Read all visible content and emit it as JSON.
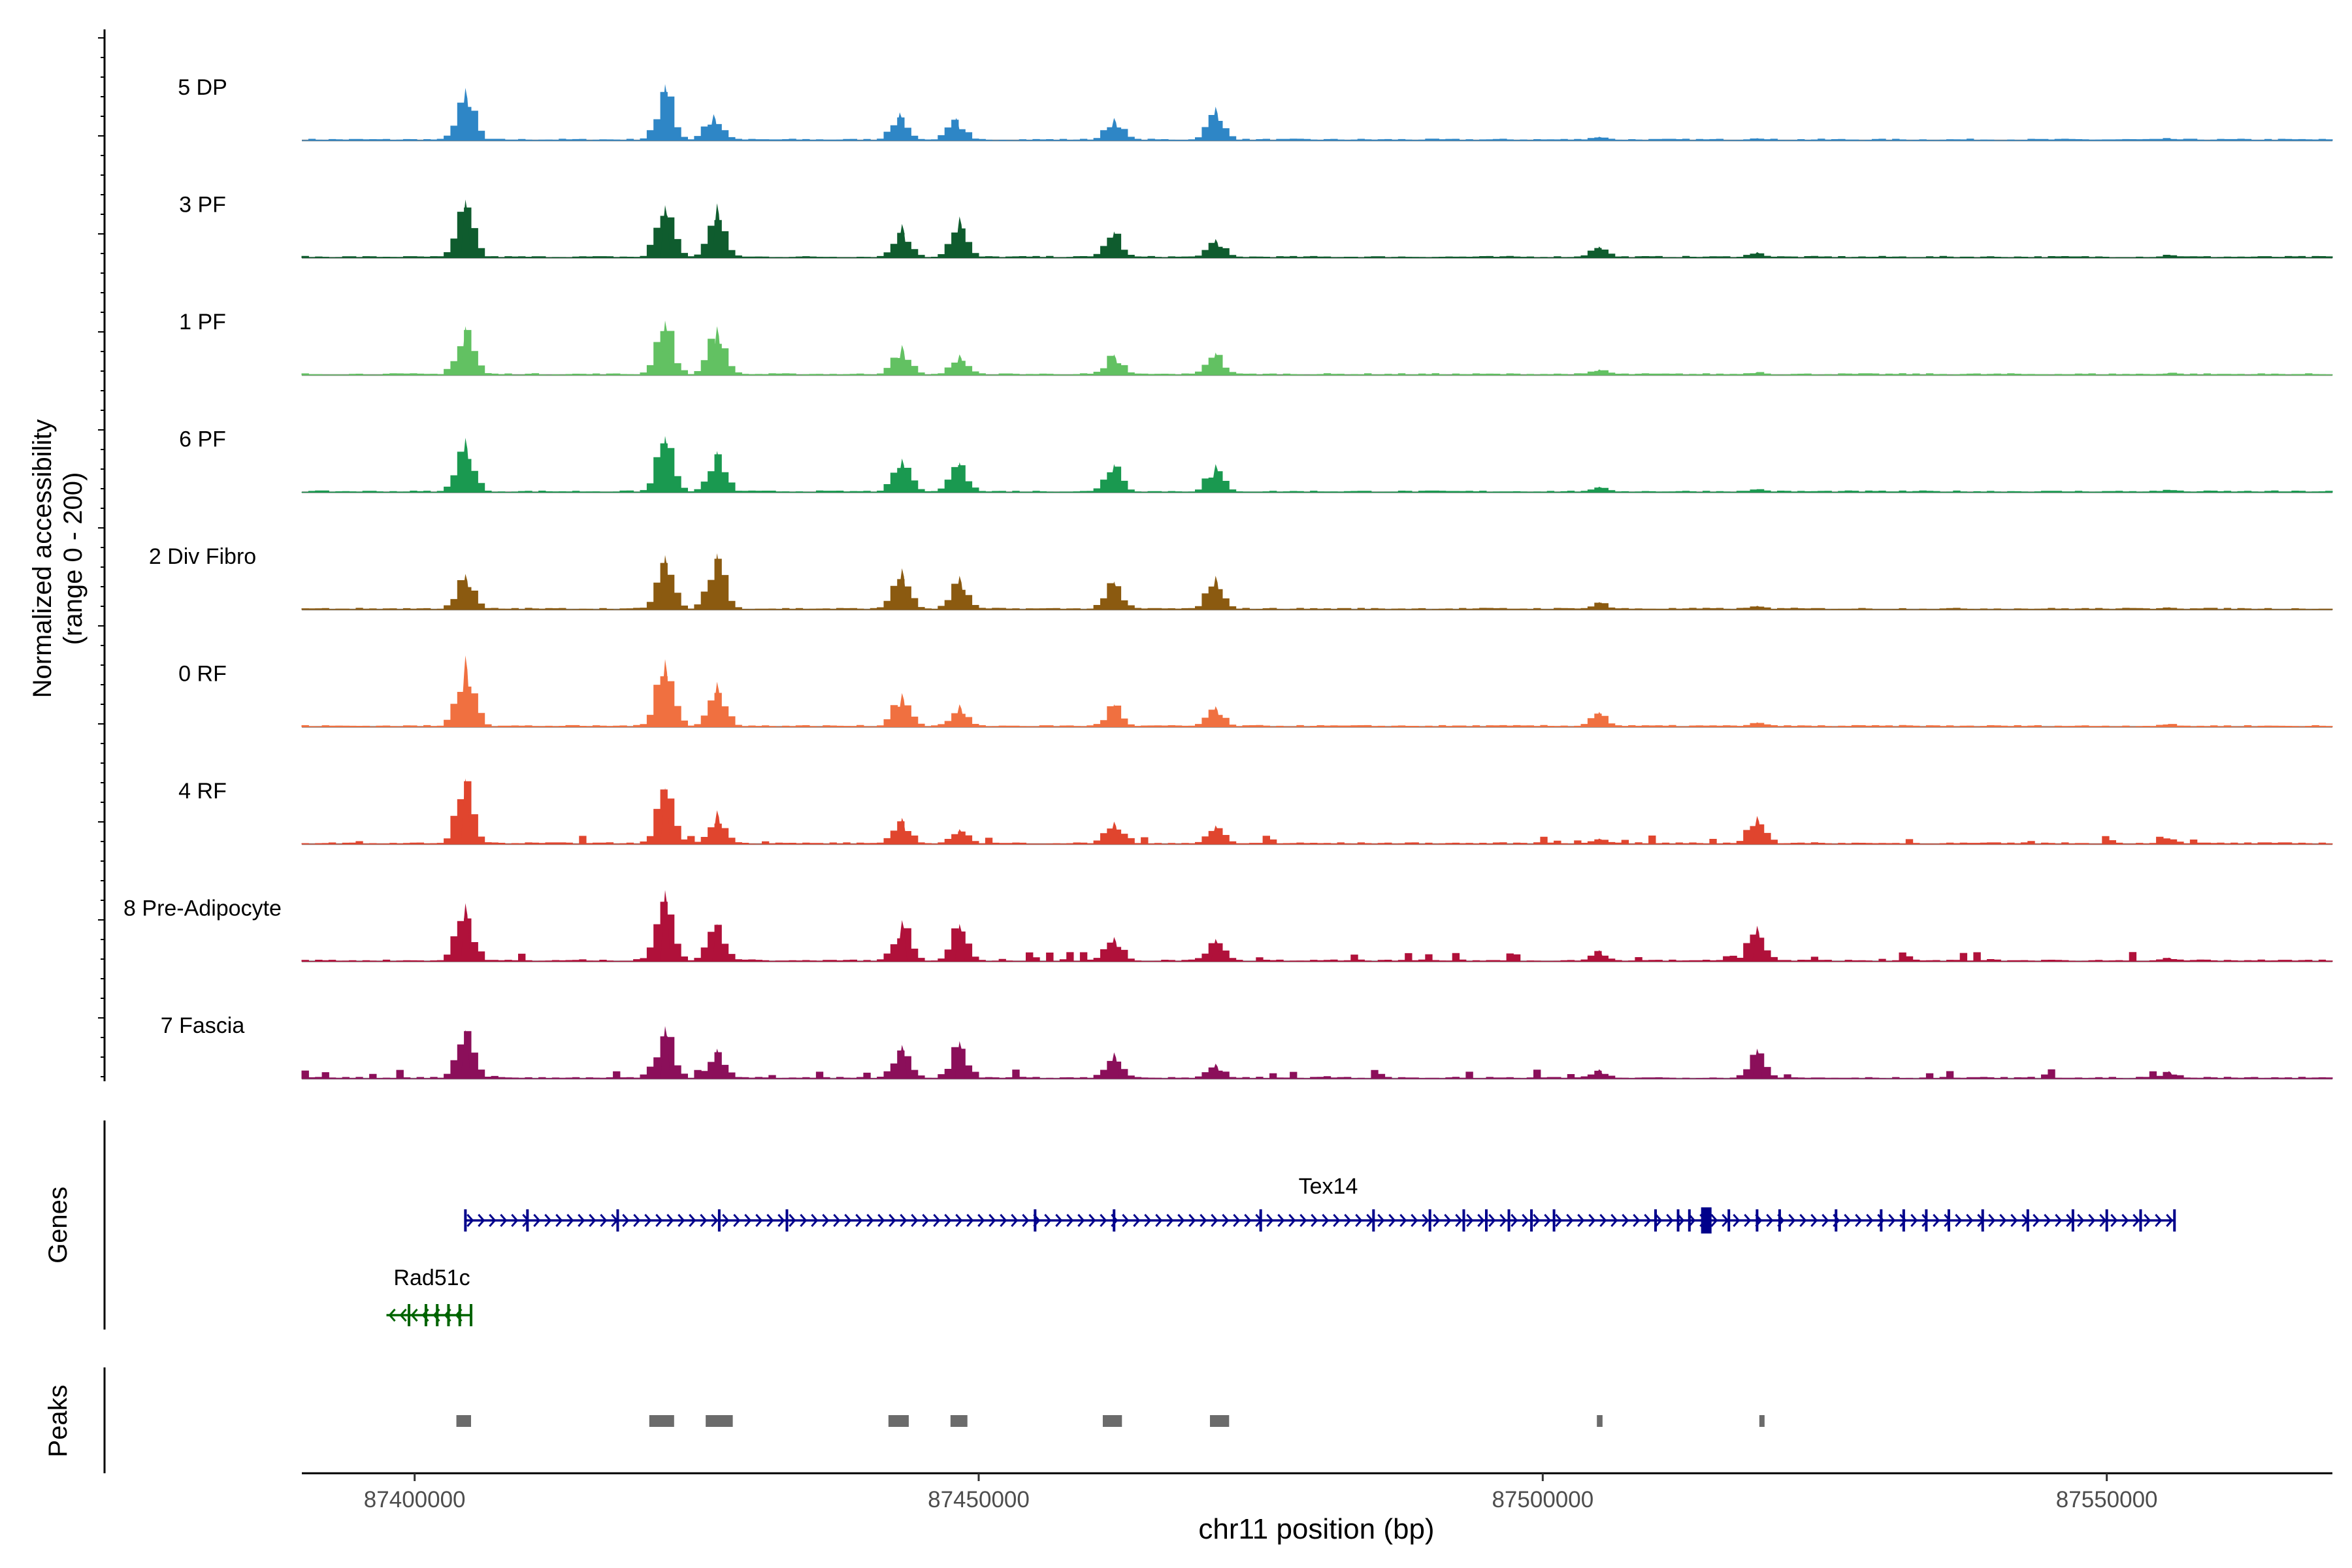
{
  "chart_data": {
    "type": "area",
    "ylabel_line1": "Normalized accessibility",
    "ylabel_line2": "(range 0 - 200)",
    "xlabel": "chr11 position (bp)",
    "genes_label": "Genes",
    "peaks_label": "Peaks",
    "xlim": [
      87390000,
      87570000
    ],
    "x_ticks": [
      87400000,
      87450000,
      87500000,
      87550000
    ],
    "x_tick_labels": [
      "87400000",
      "87450000",
      "87500000",
      "87550000"
    ],
    "ylim": [
      0,
      200
    ],
    "tracks": [
      {
        "name": "5 DP",
        "color": "#2e86c6",
        "peaks": [
          [
            87404500,
            140
          ],
          [
            87422200,
            150
          ],
          [
            87426500,
            70
          ],
          [
            87443000,
            75
          ],
          [
            87448000,
            60
          ],
          [
            87462000,
            60
          ],
          [
            87471000,
            90
          ],
          [
            87505000,
            10
          ],
          [
            87519000,
            6
          ],
          [
            87555500,
            6
          ]
        ]
      },
      {
        "name": "3 PF",
        "color": "#0f5c2e",
        "peaks": [
          [
            87404500,
            155
          ],
          [
            87422200,
            140
          ],
          [
            87426800,
            145
          ],
          [
            87443200,
            90
          ],
          [
            87448300,
            110
          ],
          [
            87462000,
            70
          ],
          [
            87471000,
            50
          ],
          [
            87505000,
            30
          ],
          [
            87519000,
            15
          ],
          [
            87555500,
            8
          ]
        ]
      },
      {
        "name": "1 PF",
        "color": "#62c162",
        "peaks": [
          [
            87404500,
            130
          ],
          [
            87422200,
            145
          ],
          [
            87426800,
            130
          ],
          [
            87443200,
            80
          ],
          [
            87448300,
            55
          ],
          [
            87462000,
            55
          ],
          [
            87471000,
            60
          ],
          [
            87505000,
            15
          ],
          [
            87519000,
            8
          ],
          [
            87555500,
            6
          ]
        ]
      },
      {
        "name": "6 PF",
        "color": "#1a9950",
        "peaks": [
          [
            87404500,
            145
          ],
          [
            87422200,
            150
          ],
          [
            87426800,
            110
          ],
          [
            87443200,
            90
          ],
          [
            87448300,
            80
          ],
          [
            87462000,
            75
          ],
          [
            87471000,
            75
          ],
          [
            87505000,
            15
          ],
          [
            87519000,
            8
          ],
          [
            87555500,
            6
          ]
        ]
      },
      {
        "name": "2 Div Fibro",
        "color": "#8b5a10",
        "peaks": [
          [
            87404500,
            95
          ],
          [
            87422200,
            145
          ],
          [
            87426800,
            150
          ],
          [
            87443200,
            110
          ],
          [
            87448300,
            90
          ],
          [
            87462000,
            75
          ],
          [
            87471000,
            90
          ],
          [
            87505000,
            20
          ],
          [
            87519000,
            10
          ],
          [
            87555500,
            6
          ]
        ]
      },
      {
        "name": "0 RF",
        "color": "#f07040",
        "peaks": [
          [
            87404500,
            190
          ],
          [
            87422200,
            180
          ],
          [
            87426800,
            120
          ],
          [
            87443200,
            90
          ],
          [
            87448300,
            60
          ],
          [
            87462000,
            60
          ],
          [
            87471000,
            55
          ],
          [
            87505000,
            40
          ],
          [
            87519000,
            12
          ],
          [
            87555500,
            8
          ]
        ]
      },
      {
        "name": "4 RF",
        "color": "#e0452e",
        "peaks": [
          [
            87404500,
            175
          ],
          [
            87422200,
            150
          ],
          [
            87426800,
            90
          ],
          [
            87443200,
            70
          ],
          [
            87448300,
            40
          ],
          [
            87462000,
            60
          ],
          [
            87471000,
            50
          ],
          [
            87505000,
            15
          ],
          [
            87519000,
            75
          ],
          [
            87555500,
            15
          ]
        ]
      },
      {
        "name": "8 Pre-Adipocyte",
        "color": "#b0113a",
        "peaks": [
          [
            87404500,
            155
          ],
          [
            87422200,
            190
          ],
          [
            87426800,
            100
          ],
          [
            87443200,
            110
          ],
          [
            87448300,
            100
          ],
          [
            87462000,
            65
          ],
          [
            87471000,
            60
          ],
          [
            87505000,
            30
          ],
          [
            87519000,
            95
          ],
          [
            87555500,
            10
          ]
        ]
      },
      {
        "name": "7 Fascia",
        "color": "#8b0f5a",
        "peaks": [
          [
            87404500,
            130
          ],
          [
            87422200,
            140
          ],
          [
            87426800,
            80
          ],
          [
            87443200,
            90
          ],
          [
            87448300,
            100
          ],
          [
            87462000,
            70
          ],
          [
            87471000,
            40
          ],
          [
            87505000,
            25
          ],
          [
            87519000,
            80
          ],
          [
            87555500,
            20
          ]
        ]
      }
    ],
    "genes": [
      {
        "name": "Tex14",
        "start": 87404500,
        "end": 87556000,
        "strand": "+",
        "color": "#00008b",
        "exons": [
          87404500,
          87410000,
          87418000,
          87427000,
          87433000,
          87455000,
          87462000,
          87475000,
          87485000,
          87490000,
          87493000,
          87495000,
          87497000,
          87499000,
          87501000,
          87510000,
          87512000,
          87513000,
          87514500,
          87516500,
          87519000,
          87521000,
          87526000,
          87530000,
          87532000,
          87534000,
          87536000,
          87539000,
          87543000,
          87547000,
          87550000,
          87553000,
          87556000
        ],
        "thick_exon": 87514500
      },
      {
        "name": "Rad51c",
        "start": 87397500,
        "end": 87405000,
        "strand": "-",
        "color": "#006400",
        "exons": [
          87399500,
          87401000,
          87402000,
          87403000,
          87404000,
          87405000
        ]
      }
    ],
    "peak_regions": [
      [
        87403700,
        87405000
      ],
      [
        87420800,
        87423000
      ],
      [
        87425800,
        87428200
      ],
      [
        87442000,
        87443800
      ],
      [
        87447500,
        87449000
      ],
      [
        87461000,
        87462700
      ],
      [
        87470500,
        87472200
      ],
      [
        87504800,
        87505300
      ],
      [
        87519200,
        87519600
      ]
    ]
  }
}
